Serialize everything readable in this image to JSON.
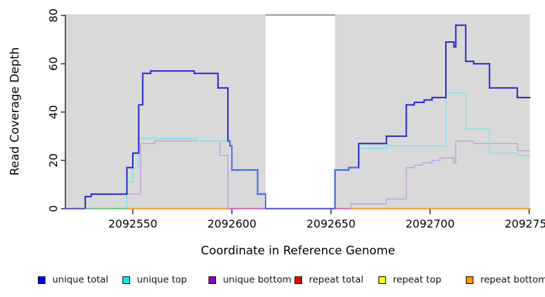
{
  "chart_data": {
    "type": "step-line",
    "title": "",
    "xlabel": "Coordinate in Reference Genome",
    "ylabel": "Read Coverage Depth",
    "xlim": [
      2092515.9,
      2092750.6
    ],
    "ylim": [
      0,
      80
    ],
    "grid": false,
    "x_ticks": [
      {
        "value": 2092550,
        "label": "2092550"
      },
      {
        "value": 2092600,
        "label": "2092600"
      },
      {
        "value": 2092650,
        "label": "2092650"
      },
      {
        "value": 2092700,
        "label": "2092700"
      },
      {
        "value": 2092750,
        "label": "2092750"
      }
    ],
    "y_ticks": [
      {
        "value": 0,
        "label": "0"
      },
      {
        "value": 20,
        "label": "20"
      },
      {
        "value": 40,
        "label": "40"
      },
      {
        "value": 60,
        "label": "60"
      },
      {
        "value": 80,
        "label": "80"
      }
    ],
    "background_regions": [
      {
        "x1": 2092515.9,
        "x2": 2092617,
        "color": "#d9d9d9"
      },
      {
        "x1": 2092652,
        "x2": 2092750.3,
        "color": "#d9d9d9"
      }
    ],
    "region_top_value": 80.5,
    "gap_top_line": {
      "x1": 2092617,
      "x2": 2092652,
      "color": "#8f8f8f"
    },
    "series": [
      {
        "key": "repeat_total",
        "label": "repeat total",
        "color": "#dd0000",
        "width": 1.4,
        "points": [
          [
            2092515.9,
            0
          ]
        ]
      },
      {
        "key": "repeat_top",
        "label": "repeat top",
        "color": "#eded00",
        "width": 1.4,
        "points": [
          [
            2092515.9,
            0
          ]
        ]
      },
      {
        "key": "repeat_bottom",
        "label": "repeat bottom",
        "color": "#ff9015",
        "width": 1.7,
        "points": [
          [
            2092515.9,
            0
          ]
        ]
      },
      {
        "key": "unique_bottom",
        "label": "unique bottom",
        "color": "#c49ae0",
        "width": 1.4,
        "points": [
          [
            2092515.9,
            0
          ],
          [
            2092526,
            5
          ],
          [
            2092529,
            6
          ],
          [
            2092554,
            27
          ],
          [
            2092561,
            28
          ],
          [
            2092594,
            22
          ],
          [
            2092598,
            0
          ],
          [
            2092660,
            2
          ],
          [
            2092678,
            4
          ],
          [
            2092688,
            17
          ],
          [
            2092692,
            18
          ],
          [
            2092696,
            19
          ],
          [
            2092701,
            20
          ],
          [
            2092705,
            21
          ],
          [
            2092712,
            19
          ],
          [
            2092713,
            28
          ],
          [
            2092722,
            27
          ],
          [
            2092744,
            24
          ]
        ]
      },
      {
        "key": "unique_top",
        "label": "unique top",
        "color": "#7de5f0",
        "width": 1.6,
        "points": [
          [
            2092515.9,
            0
          ],
          [
            2092547,
            11
          ],
          [
            2092550,
            17
          ],
          [
            2092553,
            29
          ],
          [
            2092582,
            28
          ],
          [
            2092599,
            26
          ],
          [
            2092600,
            16
          ],
          [
            2092613,
            6
          ],
          [
            2092617,
            0
          ],
          [
            2092652,
            16
          ],
          [
            2092659,
            17
          ],
          [
            2092664,
            25
          ],
          [
            2092678,
            26
          ],
          [
            2092708,
            48
          ],
          [
            2092718,
            33
          ],
          [
            2092730,
            23
          ],
          [
            2092744,
            22
          ]
        ]
      },
      {
        "key": "unique_total",
        "label": "unique total",
        "color": "#2222cc",
        "overlap_color": "#4472e8",
        "width": 2,
        "points": [
          [
            2092515.9,
            0
          ],
          [
            2092526,
            5
          ],
          [
            2092529,
            6
          ],
          [
            2092547,
            17
          ],
          [
            2092550,
            23
          ],
          [
            2092553,
            43
          ],
          [
            2092555,
            56
          ],
          [
            2092559,
            57
          ],
          [
            2092581,
            56
          ],
          [
            2092593,
            50
          ],
          [
            2092598,
            28
          ],
          [
            2092599,
            26
          ],
          [
            2092600,
            16
          ],
          [
            2092613,
            6
          ],
          [
            2092617,
            0
          ],
          [
            2092652,
            16
          ],
          [
            2092659,
            17
          ],
          [
            2092664,
            27
          ],
          [
            2092678,
            30
          ],
          [
            2092688,
            43
          ],
          [
            2092692,
            44
          ],
          [
            2092697,
            45
          ],
          [
            2092701,
            46
          ],
          [
            2092708,
            69
          ],
          [
            2092712,
            67
          ],
          [
            2092713,
            76
          ],
          [
            2092718,
            61
          ],
          [
            2092722,
            60
          ],
          [
            2092730,
            50
          ],
          [
            2092744,
            46
          ]
        ]
      }
    ],
    "baseline_overlays": [
      {
        "x1": 2092515.9,
        "x2": 2092526,
        "color": "#4a42c6"
      },
      {
        "x1": 2092526,
        "x2": 2092547,
        "color": "#5fbb7d"
      },
      {
        "x1": 2092598,
        "x2": 2092617,
        "color": "#c95fb5"
      },
      {
        "x1": 2092617,
        "x2": 2092652,
        "color": "#4444cc"
      },
      {
        "x1": 2092652,
        "x2": 2092660,
        "color": "#c95fb5"
      }
    ],
    "legend": [
      {
        "label": "unique total",
        "color": "#0000f5"
      },
      {
        "label": "unique top",
        "color": "#00eeee"
      },
      {
        "label": "unique bottom",
        "color": "#8a00d0"
      },
      {
        "label": "repeat total",
        "color": "#ee0000"
      },
      {
        "label": "repeat top",
        "color": "#ffff00"
      },
      {
        "label": "repeat bottom",
        "color": "#ff9900"
      }
    ],
    "legend_position": "bottom"
  }
}
